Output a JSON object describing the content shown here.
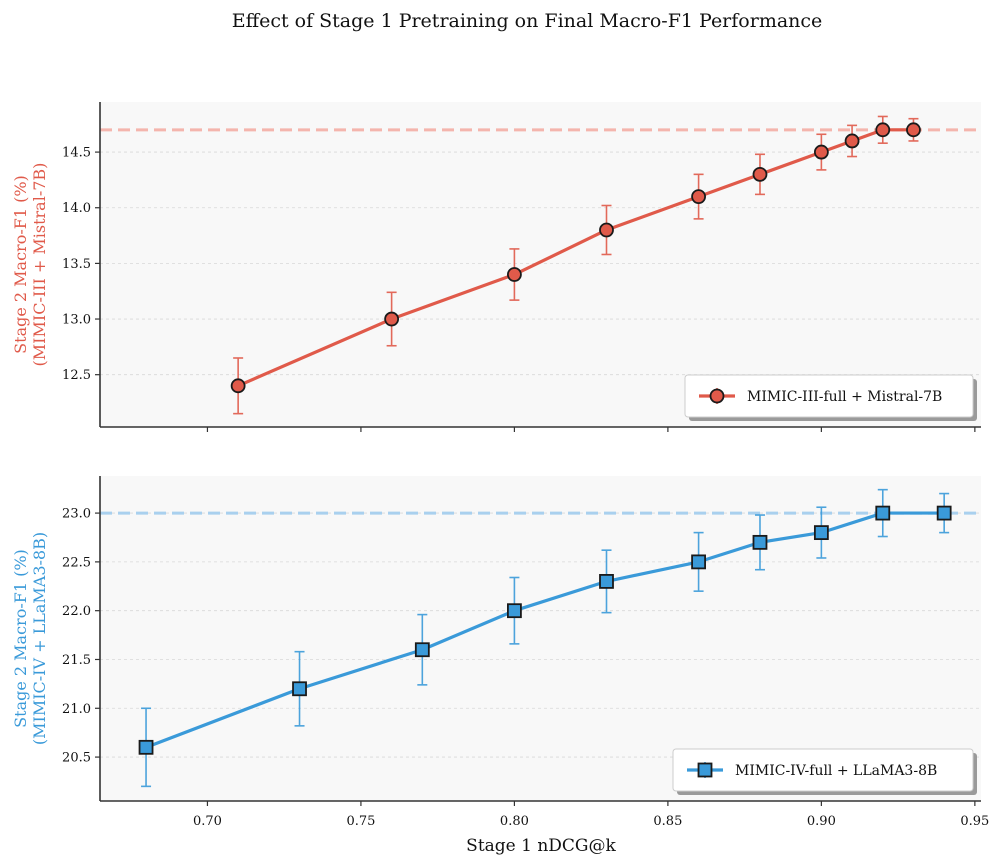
{
  "figure": {
    "title": "Effect of Stage 1 Pretraining on Final Macro-F1 Performance",
    "xlabel": "Stage 1 nDCG@k"
  },
  "colors": {
    "red": "#e05a4a",
    "blue": "#3a9ad9",
    "panel_bg": "#f8f8f8",
    "red_ref": "#f4b5ad",
    "blue_ref": "#a9d0ee"
  },
  "chart_data": [
    {
      "type": "line",
      "marker": "circle",
      "series_name": "MIMIC-III-full + Mistral-7B",
      "ylabel_line1": "Stage 2 Macro-F1 (%)",
      "ylabel_line2": "(MIMIC-III + Mistral-7B)",
      "x": [
        0.71,
        0.76,
        0.8,
        0.83,
        0.86,
        0.88,
        0.9,
        0.91,
        0.92,
        0.93
      ],
      "y": [
        12.4,
        13.0,
        13.4,
        13.8,
        14.1,
        14.3,
        14.5,
        14.6,
        14.7,
        14.7
      ],
      "err": [
        0.25,
        0.24,
        0.23,
        0.22,
        0.2,
        0.18,
        0.16,
        0.14,
        0.12,
        0.1
      ],
      "reference_line": 14.7,
      "xlim": [
        0.665,
        0.952
      ],
      "ylim": [
        12.03,
        14.95
      ],
      "yticks": [
        12.5,
        13.0,
        13.5,
        14.0,
        14.5
      ],
      "ytick_labels": [
        "12.5",
        "13.0",
        "13.5",
        "14.0",
        "14.5"
      ],
      "xticks": [
        0.7,
        0.75,
        0.8,
        0.85,
        0.9,
        0.95
      ],
      "xtick_labels": [],
      "legend_position": "lower-right",
      "grid": "horizontal dashed"
    },
    {
      "type": "line",
      "marker": "square",
      "series_name": "MIMIC-IV-full + LLaMA3-8B",
      "ylabel_line1": "Stage 2 Macro-F1 (%)",
      "ylabel_line2": "(MIMIC-IV + LLaMA3-8B)",
      "x": [
        0.68,
        0.73,
        0.77,
        0.8,
        0.83,
        0.86,
        0.88,
        0.9,
        0.92,
        0.94
      ],
      "y": [
        20.6,
        21.2,
        21.6,
        22.0,
        22.3,
        22.5,
        22.7,
        22.8,
        23.0,
        23.0
      ],
      "err": [
        0.4,
        0.38,
        0.36,
        0.34,
        0.32,
        0.3,
        0.28,
        0.26,
        0.24,
        0.2
      ],
      "reference_line": 23.0,
      "xlim": [
        0.665,
        0.952
      ],
      "ylim": [
        20.05,
        23.38
      ],
      "yticks": [
        20.5,
        21.0,
        21.5,
        22.0,
        22.5,
        23.0
      ],
      "ytick_labels": [
        "20.5",
        "21.0",
        "21.5",
        "22.0",
        "22.5",
        "23.0"
      ],
      "xticks": [
        0.7,
        0.75,
        0.8,
        0.85,
        0.9,
        0.95
      ],
      "xtick_labels": [
        "0.70",
        "0.75",
        "0.80",
        "0.85",
        "0.90",
        "0.95"
      ],
      "legend_position": "lower-right",
      "grid": "horizontal dashed"
    }
  ]
}
